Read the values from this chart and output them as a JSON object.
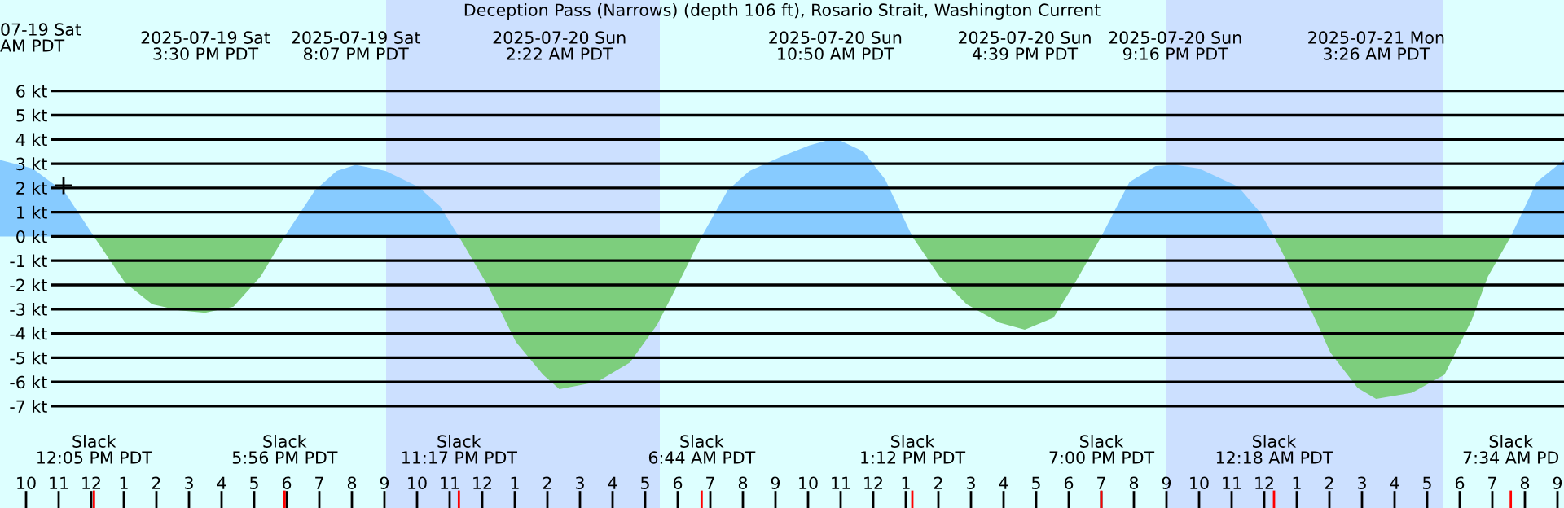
{
  "chart_data": {
    "type": "area",
    "title": "Deception Pass (Narrows) (depth 106 ft), Rosario Strait, Washington Current",
    "x": [
      "2025-07-19T09:12",
      "2025-07-19T10:12",
      "2025-07-19T11:12",
      "2025-07-19T12:05",
      "2025-07-19T13:02",
      "2025-07-19T13:52",
      "2025-07-19T14:42",
      "2025-07-19T15:30",
      "2025-07-19T16:22",
      "2025-07-19T17:12",
      "2025-07-19T17:56",
      "2025-07-19T18:52",
      "2025-07-19T19:32",
      "2025-07-19T20:07",
      "2025-07-19T21:02",
      "2025-07-19T22:02",
      "2025-07-19T22:42",
      "2025-07-19T23:17",
      "2025-07-20T00:12",
      "2025-07-20T01:02",
      "2025-07-20T01:52",
      "2025-07-20T02:22",
      "2025-07-20T03:32",
      "2025-07-20T04:32",
      "2025-07-20T05:22",
      "2025-07-20T06:02",
      "2025-07-20T06:44",
      "2025-07-20T07:32",
      "2025-07-20T08:12",
      "2025-07-20T09:12",
      "2025-07-20T10:02",
      "2025-07-20T10:50",
      "2025-07-20T11:42",
      "2025-07-20T12:22",
      "2025-07-20T13:12",
      "2025-07-20T14:02",
      "2025-07-20T14:52",
      "2025-07-20T15:52",
      "2025-07-20T16:39",
      "2025-07-20T17:32",
      "2025-07-20T18:12",
      "2025-07-20T19:00",
      "2025-07-20T19:52",
      "2025-07-20T20:40",
      "2025-07-20T21:16",
      "2025-07-20T22:00",
      "2025-07-20T23:12",
      "2025-07-20T23:52",
      "2025-07-21T00:18",
      "2025-07-21T01:12",
      "2025-07-21T02:02",
      "2025-07-21T02:52",
      "2025-07-21T03:26",
      "2025-07-21T04:32",
      "2025-07-21T05:32",
      "2025-07-21T06:22",
      "2025-07-21T06:52",
      "2025-07-21T07:34",
      "2025-07-21T08:22",
      "2025-07-21T09:12"
    ],
    "series": [
      {
        "color": "#87cbff",
        "values": [
          3.15,
          2.8,
          1.8,
          0,
          null,
          null,
          null,
          null,
          null,
          null,
          0,
          1.9,
          2.7,
          2.95,
          2.7,
          2.05,
          1.25,
          0,
          null,
          null,
          null,
          null,
          null,
          null,
          null,
          null,
          0,
          1.9,
          2.7,
          3.3,
          3.75,
          4.05,
          3.5,
          2.35,
          0,
          null,
          null,
          null,
          null,
          null,
          null,
          0,
          2.25,
          2.9,
          2.95,
          2.8,
          2.05,
          1.0,
          0,
          null,
          null,
          null,
          null,
          null,
          null,
          null,
          null,
          0,
          2.25,
          3.15
        ]
      },
      {
        "color": "#7dce7d",
        "values": [
          null,
          null,
          null,
          0,
          -1.9,
          -2.8,
          -3.05,
          -3.15,
          -2.9,
          -1.65,
          0,
          null,
          null,
          null,
          null,
          null,
          null,
          0,
          -2.1,
          -4.35,
          -5.7,
          -6.3,
          -6.0,
          -5.2,
          -3.65,
          -1.9,
          0,
          null,
          null,
          null,
          null,
          null,
          null,
          null,
          0,
          -1.65,
          -2.8,
          -3.55,
          -3.85,
          -3.35,
          -1.9,
          0,
          null,
          null,
          null,
          null,
          null,
          null,
          0,
          -2.35,
          -4.8,
          -6.25,
          -6.7,
          -6.45,
          -5.7,
          -3.45,
          -1.65,
          0,
          null,
          null
        ]
      },
      {
        "type": "scatter",
        "marker": "cross",
        "color": "#000000",
        "x": [
          "2025-07-19T11:09"
        ],
        "values": [
          2.1
        ]
      }
    ],
    "xlim": [
      "2025-07-19T09:12",
      "2025-07-21T09:12"
    ],
    "xticks": [
      {
        "value": "2025-07-19T10:00",
        "label": "10"
      },
      {
        "value": "2025-07-19T11:00",
        "label": "11"
      },
      {
        "value": "2025-07-19T12:00",
        "label": "12"
      },
      {
        "value": "2025-07-19T13:00",
        "label": "1"
      },
      {
        "value": "2025-07-19T14:00",
        "label": "2"
      },
      {
        "value": "2025-07-19T15:00",
        "label": "3"
      },
      {
        "value": "2025-07-19T16:00",
        "label": "4"
      },
      {
        "value": "2025-07-19T17:00",
        "label": "5"
      },
      {
        "value": "2025-07-19T18:00",
        "label": "6"
      },
      {
        "value": "2025-07-19T19:00",
        "label": "7"
      },
      {
        "value": "2025-07-19T20:00",
        "label": "8"
      },
      {
        "value": "2025-07-19T21:00",
        "label": "9"
      },
      {
        "value": "2025-07-19T22:00",
        "label": "10"
      },
      {
        "value": "2025-07-19T23:00",
        "label": "11"
      },
      {
        "value": "2025-07-20T00:00",
        "label": "12"
      },
      {
        "value": "2025-07-20T01:00",
        "label": "1"
      },
      {
        "value": "2025-07-20T02:00",
        "label": "2"
      },
      {
        "value": "2025-07-20T03:00",
        "label": "3"
      },
      {
        "value": "2025-07-20T04:00",
        "label": "4"
      },
      {
        "value": "2025-07-20T05:00",
        "label": "5"
      },
      {
        "value": "2025-07-20T06:00",
        "label": "6"
      },
      {
        "value": "2025-07-20T07:00",
        "label": "7"
      },
      {
        "value": "2025-07-20T08:00",
        "label": "8"
      },
      {
        "value": "2025-07-20T09:00",
        "label": "9"
      },
      {
        "value": "2025-07-20T10:00",
        "label": "10"
      },
      {
        "value": "2025-07-20T11:00",
        "label": "11"
      },
      {
        "value": "2025-07-20T12:00",
        "label": "12"
      },
      {
        "value": "2025-07-20T13:00",
        "label": "1"
      },
      {
        "value": "2025-07-20T14:00",
        "label": "2"
      },
      {
        "value": "2025-07-20T15:00",
        "label": "3"
      },
      {
        "value": "2025-07-20T16:00",
        "label": "4"
      },
      {
        "value": "2025-07-20T17:00",
        "label": "5"
      },
      {
        "value": "2025-07-20T18:00",
        "label": "6"
      },
      {
        "value": "2025-07-20T19:00",
        "label": "7"
      },
      {
        "value": "2025-07-20T20:00",
        "label": "8"
      },
      {
        "value": "2025-07-20T21:00",
        "label": "9"
      },
      {
        "value": "2025-07-20T22:00",
        "label": "10"
      },
      {
        "value": "2025-07-20T23:00",
        "label": "11"
      },
      {
        "value": "2025-07-21T00:00",
        "label": "12"
      },
      {
        "value": "2025-07-21T01:00",
        "label": "1"
      },
      {
        "value": "2025-07-21T02:00",
        "label": "2"
      },
      {
        "value": "2025-07-21T03:00",
        "label": "3"
      },
      {
        "value": "2025-07-21T04:00",
        "label": "4"
      },
      {
        "value": "2025-07-21T05:00",
        "label": "5"
      },
      {
        "value": "2025-07-21T06:00",
        "label": "6"
      },
      {
        "value": "2025-07-21T07:00",
        "label": "7"
      },
      {
        "value": "2025-07-21T08:00",
        "label": "8"
      },
      {
        "value": "2025-07-21T09:00",
        "label": "9"
      }
    ],
    "x2lim": [
      "2025-07-19T09:12",
      "2025-07-21T09:12"
    ],
    "x2ticks": [
      {
        "value": "2025-07-19T15:30",
        "label": "2025-07-19 Sat\n3:30 PM PDT"
      },
      {
        "value": "2025-07-19T20:07",
        "label": "2025-07-19 Sat\n8:07 PM PDT"
      },
      {
        "value": "2025-07-20T02:22",
        "label": "2025-07-20 Sun\n2:22 AM PDT"
      },
      {
        "value": "2025-07-20T10:50",
        "label": "2025-07-20 Sun\n10:50 AM PDT"
      },
      {
        "value": "2025-07-20T16:39",
        "label": "2025-07-20 Sun\n4:39 PM PDT"
      },
      {
        "value": "2025-07-20T21:16",
        "label": "2025-07-20 Sun\n9:16 PM PDT"
      },
      {
        "value": "2025-07-21T03:26",
        "label": "2025-07-21 Mon\n3:26 AM PDT"
      }
    ],
    "ylim": [
      -11.2,
      9.75
    ],
    "yticks": [
      {
        "value": 6,
        "label": "6 kt"
      },
      {
        "value": 5,
        "label": "5 kt"
      },
      {
        "value": 4,
        "label": "4 kt"
      },
      {
        "value": 3,
        "label": "3 kt"
      },
      {
        "value": 2,
        "label": "2 kt"
      },
      {
        "value": 1,
        "label": "1 kt"
      },
      {
        "value": 0,
        "label": "0 kt"
      },
      {
        "value": -1,
        "label": "-1 kt"
      },
      {
        "value": -2,
        "label": "-2 kt"
      },
      {
        "value": -3,
        "label": "-3 kt"
      },
      {
        "value": -4,
        "label": "-4 kt"
      },
      {
        "value": -5,
        "label": "-5 kt"
      },
      {
        "value": -6,
        "label": "-6 kt"
      },
      {
        "value": -7,
        "label": "-7 kt"
      }
    ],
    "grid": "y",
    "bands": [
      {
        "axis": "x",
        "from": "2025-07-19T21:03",
        "to": "2025-07-20T05:27",
        "color": "#cce0ff"
      },
      {
        "axis": "x",
        "from": "2025-07-20T21:00",
        "to": "2025-07-21T05:30",
        "color": "#cce0ff"
      }
    ],
    "annotations": [
      "07-19 Sat\nAM PDT",
      "Slack\n12:05 PM PDT",
      "Slack\n5:56 PM PDT",
      "Slack\n11:17 PM PDT",
      "Slack\n6:44 AM PDT",
      "Slack\n1:12 PM PDT",
      "Slack\n7:00 PM PDT",
      "Slack\n12:18 AM PDT",
      "Slack\n7:34 AM PD"
    ]
  }
}
